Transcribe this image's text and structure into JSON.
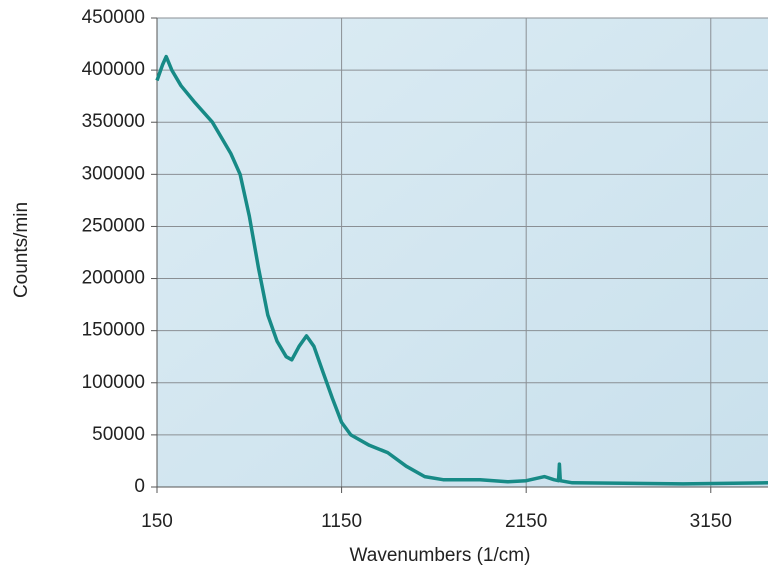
{
  "chart_data": {
    "type": "line",
    "x_label": "Wavenumbers (1/cm)",
    "y_label": "Counts/min",
    "x": [
      150,
      180,
      200,
      230,
      280,
      350,
      450,
      550,
      600,
      650,
      700,
      750,
      800,
      850,
      880,
      920,
      960,
      1000,
      1050,
      1100,
      1150,
      1200,
      1300,
      1400,
      1500,
      1600,
      1700,
      1900,
      2050,
      2150,
      2250,
      2300,
      2325,
      2330,
      2335,
      2400,
      3000,
      3460
    ],
    "series": [
      {
        "name": "spectrum",
        "color": "#178a86",
        "values": [
          390000,
          405000,
          413000,
          400000,
          385000,
          370000,
          350000,
          320000,
          300000,
          260000,
          210000,
          165000,
          140000,
          125000,
          122000,
          135000,
          145000,
          135000,
          110000,
          85000,
          62000,
          50000,
          40000,
          33000,
          20000,
          10000,
          7000,
          7000,
          5000,
          6000,
          10000,
          7000,
          6000,
          22000,
          6000,
          4000,
          3000,
          4000
        ]
      }
    ],
    "xlim": [
      150,
      3460
    ],
    "xticks": [
      150,
      1150,
      2150,
      3150
    ],
    "ylim": [
      0,
      450000
    ],
    "yticks": [
      0,
      50000,
      100000,
      150000,
      200000,
      250000,
      300000,
      350000,
      400000,
      450000
    ],
    "grid": true
  }
}
